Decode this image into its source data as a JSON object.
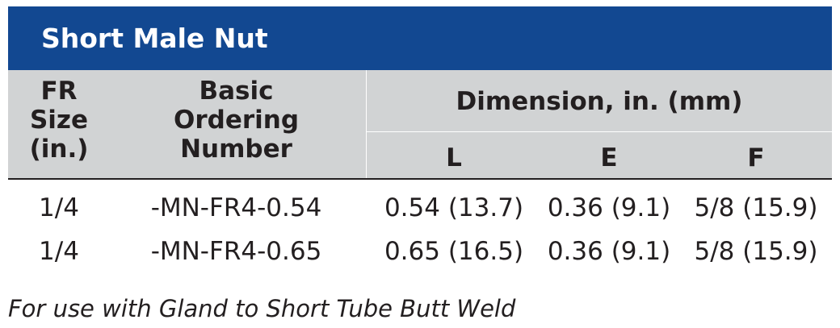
{
  "title": "Short Male Nut",
  "headers": {
    "fr_size": [
      "FR",
      "Size",
      "(in.)"
    ],
    "ordering_number": [
      "Basic",
      "Ordering",
      "Number"
    ],
    "dimension_group": "Dimension, in. (mm)",
    "dimension_cols": [
      "L",
      "E",
      "F"
    ]
  },
  "rows": [
    {
      "fr_size": "1/4",
      "ordering_number": "-MN-FR4-0.54",
      "L": "0.54 (13.7)",
      "E": "0.36 (9.1)",
      "F": "5/8 (15.9)"
    },
    {
      "fr_size": "1/4",
      "ordering_number": "-MN-FR4-0.65",
      "L": "0.65 (16.5)",
      "E": "0.36 (9.1)",
      "F": "5/8 (15.9)"
    }
  ],
  "footnote": "For use with Gland to Short Tube Butt Weld",
  "colors": {
    "title_bar": "#124891",
    "header_band": "#d1d3d4",
    "text": "#231f20"
  }
}
